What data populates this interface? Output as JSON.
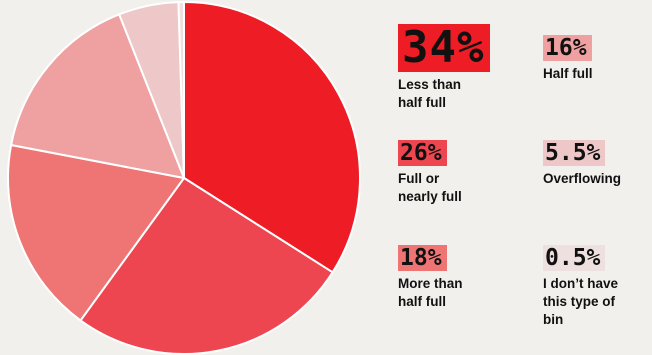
{
  "chart_data": {
    "type": "pie",
    "slices": [
      {
        "label": "Less than\nhalf full",
        "value": 34,
        "display": "34%",
        "color": "#ee1c25"
      },
      {
        "label": "Full or\nnearly full",
        "value": 26,
        "display": "26%",
        "color": "#ee4650"
      },
      {
        "label": "More than\nhalf full",
        "value": 18,
        "display": "18%",
        "color": "#ef7474"
      },
      {
        "label": "Half full",
        "value": 16,
        "display": "16%",
        "color": "#efa0a0"
      },
      {
        "label": "Overflowing",
        "value": 5.5,
        "display": "5.5%",
        "color": "#eec8c8"
      },
      {
        "label": "I don’t have\nthis type of\nbin",
        "value": 0.5,
        "display": "0.5%",
        "color": "#efe0e0"
      }
    ],
    "start_angle_deg": 0,
    "direction": "clockwise"
  }
}
